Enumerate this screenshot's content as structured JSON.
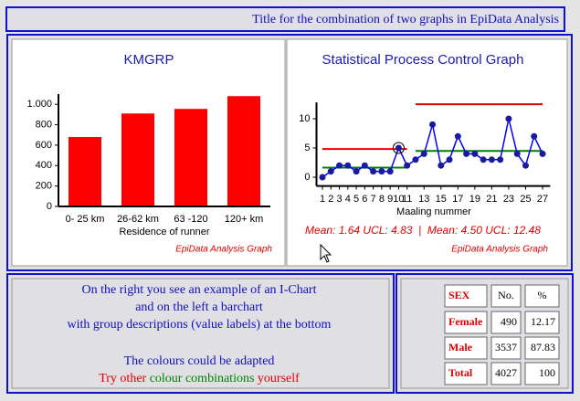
{
  "header": {
    "title": "Title for the combination of two graphs in EpiData Analysis"
  },
  "chart_data": [
    {
      "type": "bar",
      "title": "KMGRP",
      "x_label": "Residence of runner",
      "footer": "EpiData Analysis Graph",
      "categories": [
        "0- 25 km",
        "26-62 km",
        "63 -120",
        "120+ km"
      ],
      "values": [
        680,
        910,
        955,
        1080
      ],
      "color": "#ff0000",
      "ylim": [
        0,
        1100
      ],
      "yticks": [
        0,
        200,
        400,
        600,
        800,
        {
          "value": 1000,
          "label": "1.000"
        }
      ]
    },
    {
      "type": "line",
      "title": "Statistical Process Control Graph",
      "x_label": "Maaling nummer",
      "caption": "Mean: 1.64 UCL: 4.83  |  Mean: 4.50 UCL: 12.48",
      "footer": "EpiData Analysis Graph",
      "x": [
        1,
        2,
        3,
        4,
        5,
        6,
        7,
        8,
        9,
        10,
        11,
        12,
        13,
        14,
        15,
        16,
        17,
        18,
        19,
        20,
        21,
        22,
        23,
        24,
        25,
        26,
        27
      ],
      "values": [
        0,
        1,
        2,
        2,
        1,
        2,
        1,
        1,
        1,
        5,
        2,
        3,
        4,
        9,
        2,
        3,
        7,
        4,
        4,
        3,
        3,
        3,
        10,
        4,
        2,
        7,
        4
      ],
      "color": "#0000ff",
      "marker_color": "#1a1aa0",
      "limits": [
        {
          "start": 1,
          "end": 11,
          "mean": 1.64,
          "ucl": 4.83
        },
        {
          "start": 12,
          "end": 27,
          "mean": 4.5,
          "ucl": 12.48
        }
      ],
      "mean_color": "#008000",
      "ucl_color": "#e00000",
      "signals": [
        9
      ],
      "xlim": [
        0.3,
        27.9
      ],
      "xticks": [
        1,
        2,
        3,
        4,
        5,
        6,
        7,
        8,
        9,
        10,
        11,
        13,
        15,
        17,
        19,
        21,
        23,
        25,
        27
      ],
      "ylim": [
        -1.5,
        12.8
      ],
      "yticks": [
        0,
        5,
        10
      ]
    }
  ],
  "note": {
    "lines": [
      "On the right you see an example of an I-Chart",
      "and on the left a barchart",
      "with group descriptions (value labels) at the bottom",
      "The colours could be adapted"
    ],
    "last_line": [
      {
        "text": "Try other",
        "color": "#e00000"
      },
      {
        "text": "colour combinations",
        "color": "#008000"
      },
      {
        "text": "yourself",
        "color": "#e00000"
      }
    ]
  },
  "table": {
    "header": [
      "SEX",
      "No.",
      "%"
    ],
    "rows": [
      [
        "Female",
        490,
        12.17
      ],
      [
        "Male",
        3537,
        87.83
      ],
      [
        "Total",
        4027,
        100
      ]
    ]
  }
}
